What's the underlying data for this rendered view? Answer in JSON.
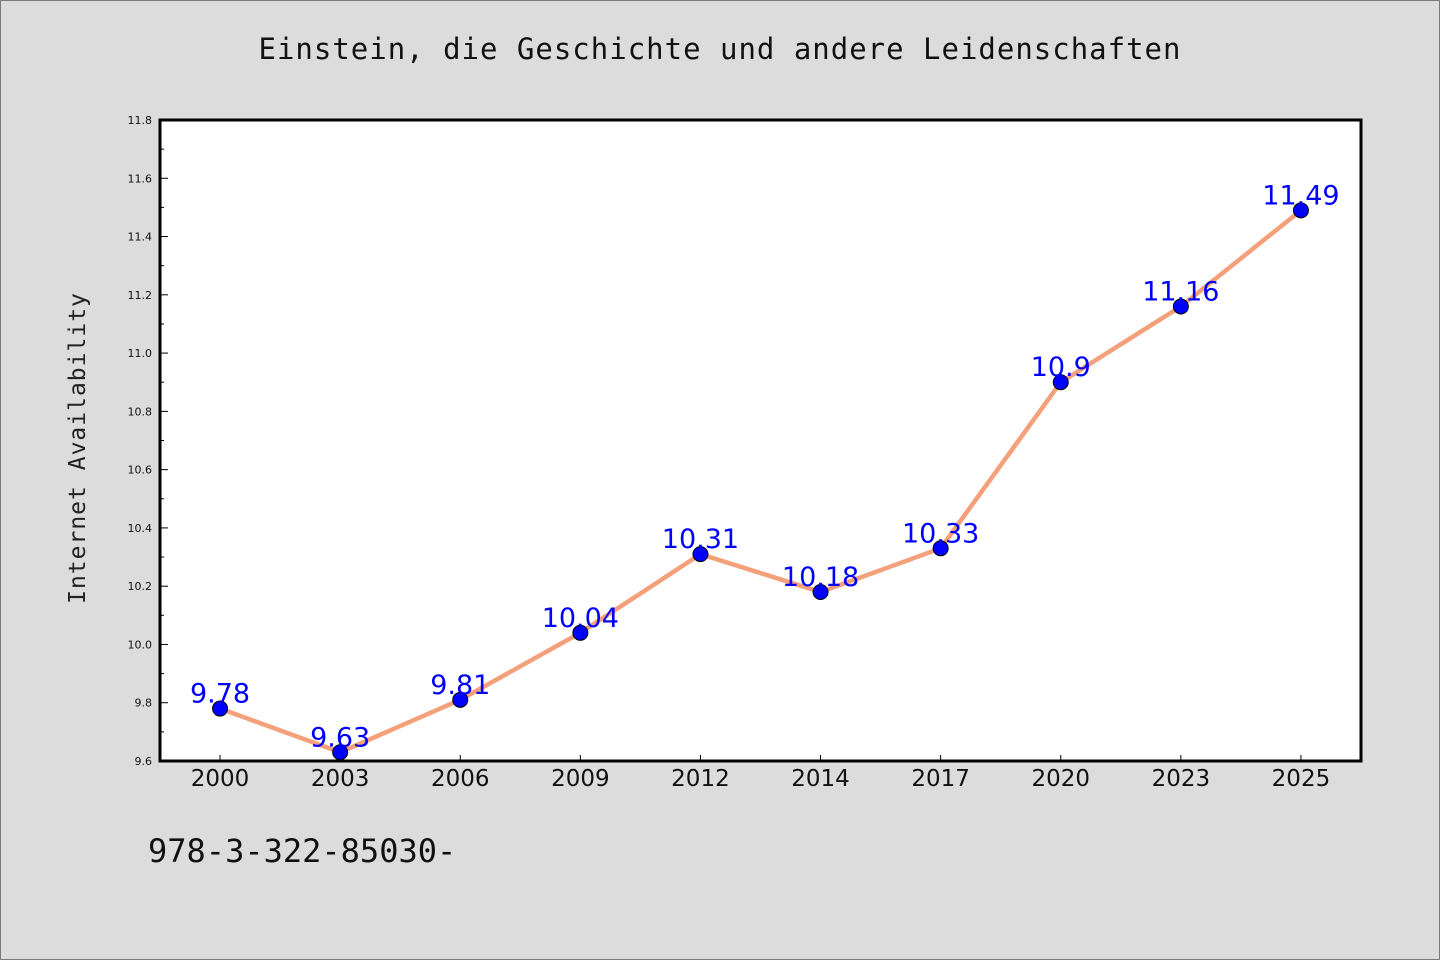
{
  "chart_data": {
    "type": "line",
    "title": "Einstein, die Geschichte und andere Leidenschaften",
    "xlabel": "",
    "ylabel": "Internet Availability",
    "categories": [
      "2000",
      "2003",
      "2006",
      "2009",
      "2012",
      "2014",
      "2017",
      "2020",
      "2023",
      "2025"
    ],
    "series": [
      {
        "values": [
          9.78,
          9.63,
          9.81,
          10.04,
          10.31,
          10.18,
          10.33,
          10.9,
          11.16,
          11.49
        ],
        "labels": [
          "9.78",
          "9.63",
          "9.81",
          "10.04",
          "10.31",
          "10.18",
          "10.33",
          "10.9",
          "11.16",
          "11.49"
        ]
      }
    ],
    "ylim": [
      9.6,
      11.8
    ],
    "yticks": [
      "9.6",
      "9.8",
      "10.0",
      "10.2",
      "10.4",
      "10.6",
      "10.8",
      "11.0",
      "11.2",
      "11.4",
      "11.6",
      "11.8"
    ],
    "grid": false,
    "colors": {
      "line": "#f4a07a",
      "marker": "#0000ff",
      "label": "#0000ff",
      "background": "#dcdcdc",
      "plot_background": "#ffffff"
    }
  },
  "footer": {
    "text": "978-3-322-85030-"
  }
}
